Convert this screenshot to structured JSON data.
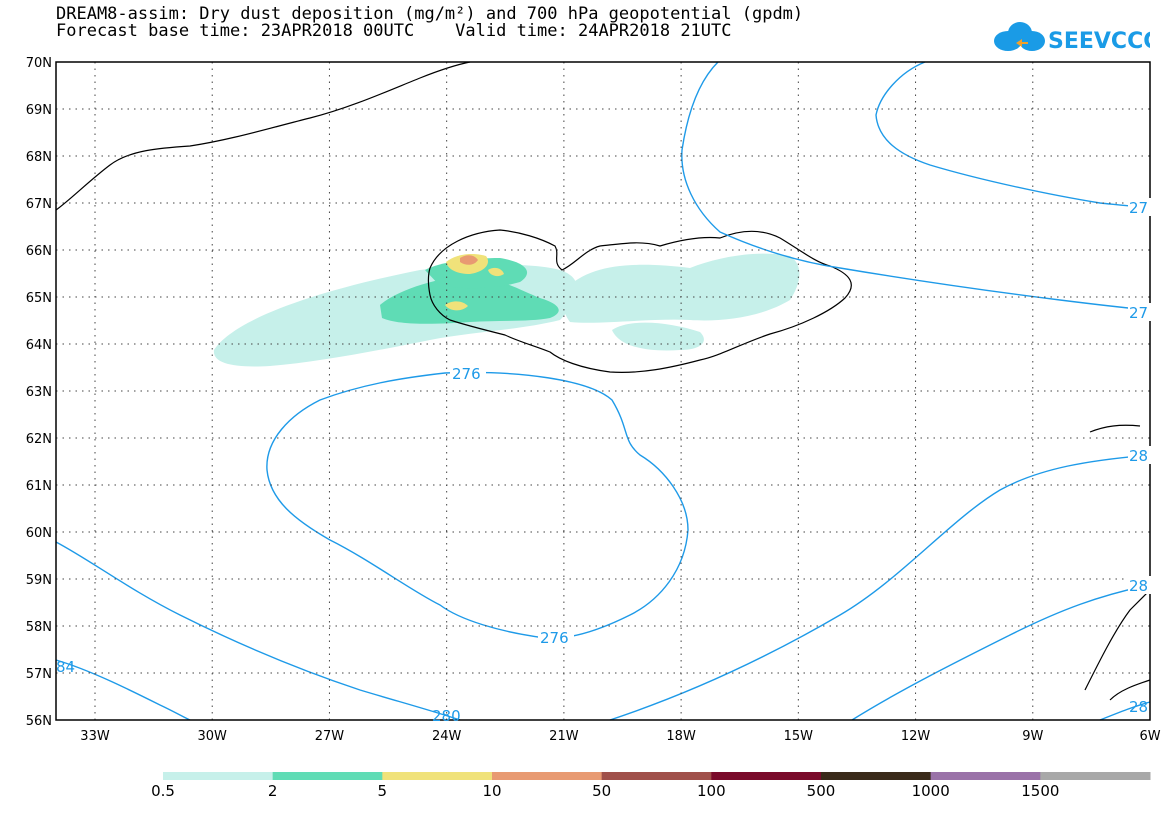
{
  "header": {
    "title_line1": "DREAM8-assim: Dry dust deposition (mg/m²) and 700 hPa geopotential (gpdm)",
    "title_line2": "Forecast base time: 23APR2018 00UTC    Valid time: 24APR2018 21UTC"
  },
  "logo": {
    "text": "SEEVCCC",
    "color": "#1a9be6"
  },
  "map": {
    "lat_labels": [
      "70N",
      "69N",
      "68N",
      "67N",
      "66N",
      "65N",
      "64N",
      "63N",
      "62N",
      "61N",
      "60N",
      "59N",
      "58N",
      "57N",
      "56N"
    ],
    "lon_labels": [
      "33W",
      "30W",
      "27W",
      "24W",
      "21W",
      "18W",
      "15W",
      "12W",
      "9W",
      "6W"
    ],
    "contour_labels": [
      "276",
      "276",
      "280",
      "84",
      "27",
      "27",
      "28",
      "28",
      "28"
    ],
    "contour_color": "#1e9ae8"
  },
  "colorbar": {
    "labels": [
      "0.5",
      "2",
      "5",
      "10",
      "50",
      "100",
      "500",
      "1000",
      "1500"
    ],
    "colors": [
      "#c6f0ea",
      "#5fdcb5",
      "#f0e27a",
      "#e89a72",
      "#a0504a",
      "#7a0a2a",
      "#3a2a1a",
      "#9a72a8",
      "#a8a8a8"
    ]
  }
}
